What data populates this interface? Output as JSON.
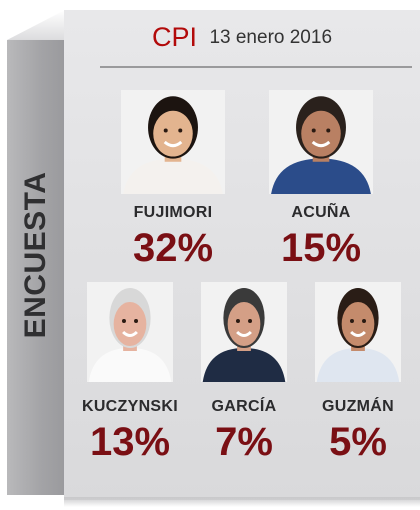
{
  "side_label": "ENCUESTA",
  "header": {
    "pollster": "CPI",
    "date": "13 enero 2016"
  },
  "colors": {
    "accent": "#b20a0a",
    "percent": "#7a0f14",
    "panel": "#e2e2e4"
  },
  "chart_data": {
    "type": "bar",
    "title": "CPI",
    "subtitle": "13 enero 2016",
    "categories": [
      "FUJIMORI",
      "ACUÑA",
      "KUCZYNSKI",
      "GARCÍA",
      "GUZMÁN"
    ],
    "values": [
      32,
      15,
      13,
      7,
      5
    ],
    "labels": [
      "32%",
      "15%",
      "13%",
      "7%",
      "5%"
    ],
    "unit": "%"
  },
  "candidates": [
    {
      "name": "FUJIMORI",
      "pct": "32%",
      "hair": "#1c1410",
      "skin": "#e3b48f",
      "shirt": "#f4f1ee",
      "icon": "portrait-fujimori"
    },
    {
      "name": "ACUÑA",
      "pct": "15%",
      "hair": "#2a211c",
      "skin": "#b98063",
      "shirt": "#2b4c8a",
      "icon": "portrait-acuna"
    },
    {
      "name": "KUCZYNSKI",
      "pct": "13%",
      "hair": "#d8d8d8",
      "skin": "#e6b3a0",
      "shirt": "#fafafa",
      "icon": "portrait-kuczynski"
    },
    {
      "name": "GARCÍA",
      "pct": "7%",
      "hair": "#3a3a3a",
      "skin": "#d49f86",
      "shirt": "#1f2c44",
      "icon": "portrait-garcia"
    },
    {
      "name": "GUZMÁN",
      "pct": "5%",
      "hair": "#2a1d16",
      "skin": "#c48b6c",
      "shirt": "#dfe6f0",
      "icon": "portrait-guzman"
    }
  ]
}
